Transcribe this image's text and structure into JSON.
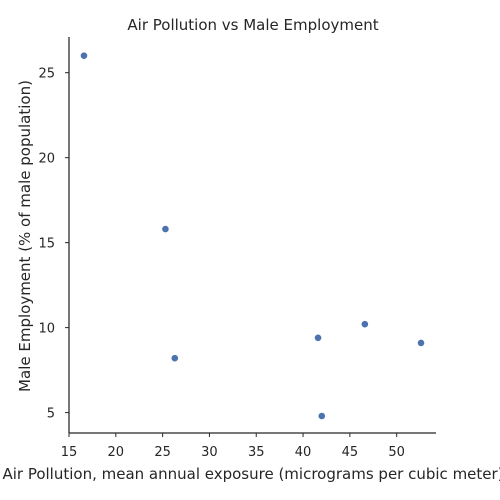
{
  "chart_data": {
    "type": "scatter",
    "title": "Air Pollution vs Male Employment",
    "xlabel": "Air Pollution, mean annual exposure (micrograms per cubic meter)",
    "ylabel": "Male Employment (% of male population)",
    "xlim": [
      15,
      54.2
    ],
    "ylim": [
      3.8,
      27.1
    ],
    "xticks": [
      15,
      20,
      25,
      30,
      35,
      40,
      45,
      50
    ],
    "yticks": [
      5,
      10,
      15,
      20,
      25
    ],
    "grid": false,
    "point_color": "#4c72b0",
    "points": [
      {
        "x": 16.6,
        "y": 26.0
      },
      {
        "x": 25.3,
        "y": 15.8
      },
      {
        "x": 26.3,
        "y": 8.2
      },
      {
        "x": 41.6,
        "y": 9.4
      },
      {
        "x": 42.0,
        "y": 4.8
      },
      {
        "x": 46.6,
        "y": 10.2
      },
      {
        "x": 52.6,
        "y": 9.1
      }
    ]
  }
}
